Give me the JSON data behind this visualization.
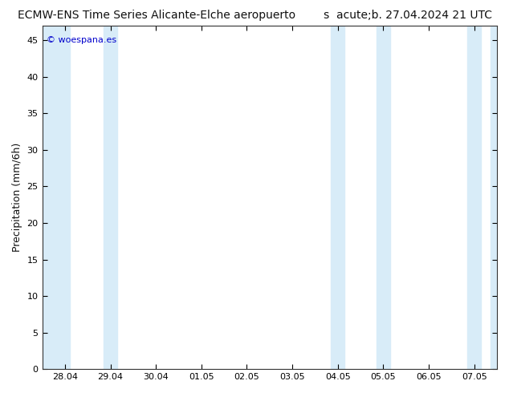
{
  "title_left": "ECMW-ENS Time Series Alicante-Elche aeropuerto",
  "title_right": "s  acute;b. 27.04.2024 21 UTC",
  "ylabel": "Precipitation (mm/6h)",
  "watermark": "© woespana.es",
  "xlim_left": -0.5,
  "xlim_right": 9.5,
  "ylim_bottom": 0,
  "ylim_top": 47,
  "yticks": [
    0,
    5,
    10,
    15,
    20,
    25,
    30,
    35,
    40,
    45
  ],
  "xtick_labels": [
    "28.04",
    "29.04",
    "30.04",
    "01.05",
    "02.05",
    "03.05",
    "04.05",
    "05.05",
    "06.05",
    "07.05"
  ],
  "xtick_positions": [
    0,
    1,
    2,
    3,
    4,
    5,
    6,
    7,
    8,
    9
  ],
  "band_positions": [
    {
      "x_start": -0.5,
      "x_end": 0.1
    },
    {
      "x_start": 0.85,
      "x_end": 1.15
    },
    {
      "x_start": 5.85,
      "x_end": 6.15
    },
    {
      "x_start": 6.85,
      "x_end": 7.15
    },
    {
      "x_start": 8.85,
      "x_end": 9.15
    },
    {
      "x_start": 9.35,
      "x_end": 9.5
    }
  ],
  "band_color": "#d8ecf8",
  "background_color": "#ffffff",
  "plot_bg_color": "#ffffff",
  "title_fontsize": 10,
  "axis_fontsize": 8,
  "watermark_color": "#0000cc",
  "watermark_fontsize": 8,
  "title_color": "#111111"
}
